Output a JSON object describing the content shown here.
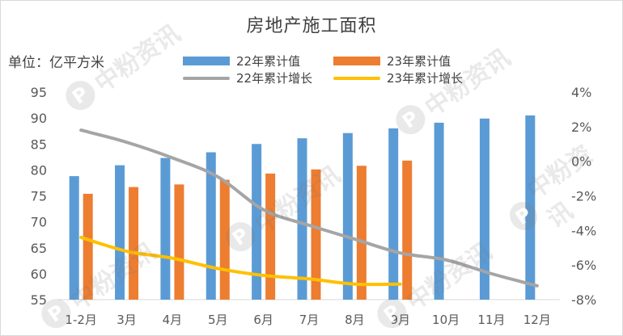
{
  "chart_data": {
    "type": "bar+line",
    "title": "房地产施工面积",
    "unit_label": "单位：亿平方米",
    "categories": [
      "1-2月",
      "3月",
      "4月",
      "5月",
      "6月",
      "7月",
      "8月",
      "9月",
      "10月",
      "11月",
      "12月"
    ],
    "bar_series": [
      {
        "name": "22年累计值",
        "color": "#5b9bd5",
        "values": [
          78.8,
          80.9,
          82.3,
          83.4,
          85.0,
          86.1,
          87.1,
          88.0,
          89.1,
          89.9,
          90.5
        ]
      },
      {
        "name": "23年累计值",
        "color": "#ed7d31",
        "values": [
          75.4,
          76.7,
          77.2,
          78.1,
          79.3,
          80.1,
          80.8,
          81.8,
          null,
          null,
          null
        ]
      }
    ],
    "line_series": [
      {
        "name": "22年累计增长",
        "color": "#a5a5a5",
        "values": [
          1.8,
          1.1,
          0.2,
          -0.9,
          -2.8,
          -3.7,
          -4.5,
          -5.3,
          -5.7,
          -6.5,
          -7.2
        ]
      },
      {
        "name": "23年累计增长",
        "color": "#ffc000",
        "values": [
          -4.4,
          -5.2,
          -5.6,
          -6.2,
          -6.6,
          -6.8,
          -7.1,
          -7.1,
          null,
          null,
          null
        ]
      }
    ],
    "y_left": {
      "min": 55,
      "max": 95,
      "step": 5,
      "ticks": [
        "55",
        "60",
        "65",
        "70",
        "75",
        "80",
        "85",
        "90",
        "95"
      ]
    },
    "y_right": {
      "min": -8,
      "max": 4,
      "step": 2,
      "ticks": [
        "-8%",
        "-6%",
        "-4%",
        "-2%",
        "0%",
        "2%",
        "4%"
      ]
    },
    "legend_position": "top"
  },
  "watermark": {
    "badge": "P",
    "text": "中粉资讯"
  }
}
